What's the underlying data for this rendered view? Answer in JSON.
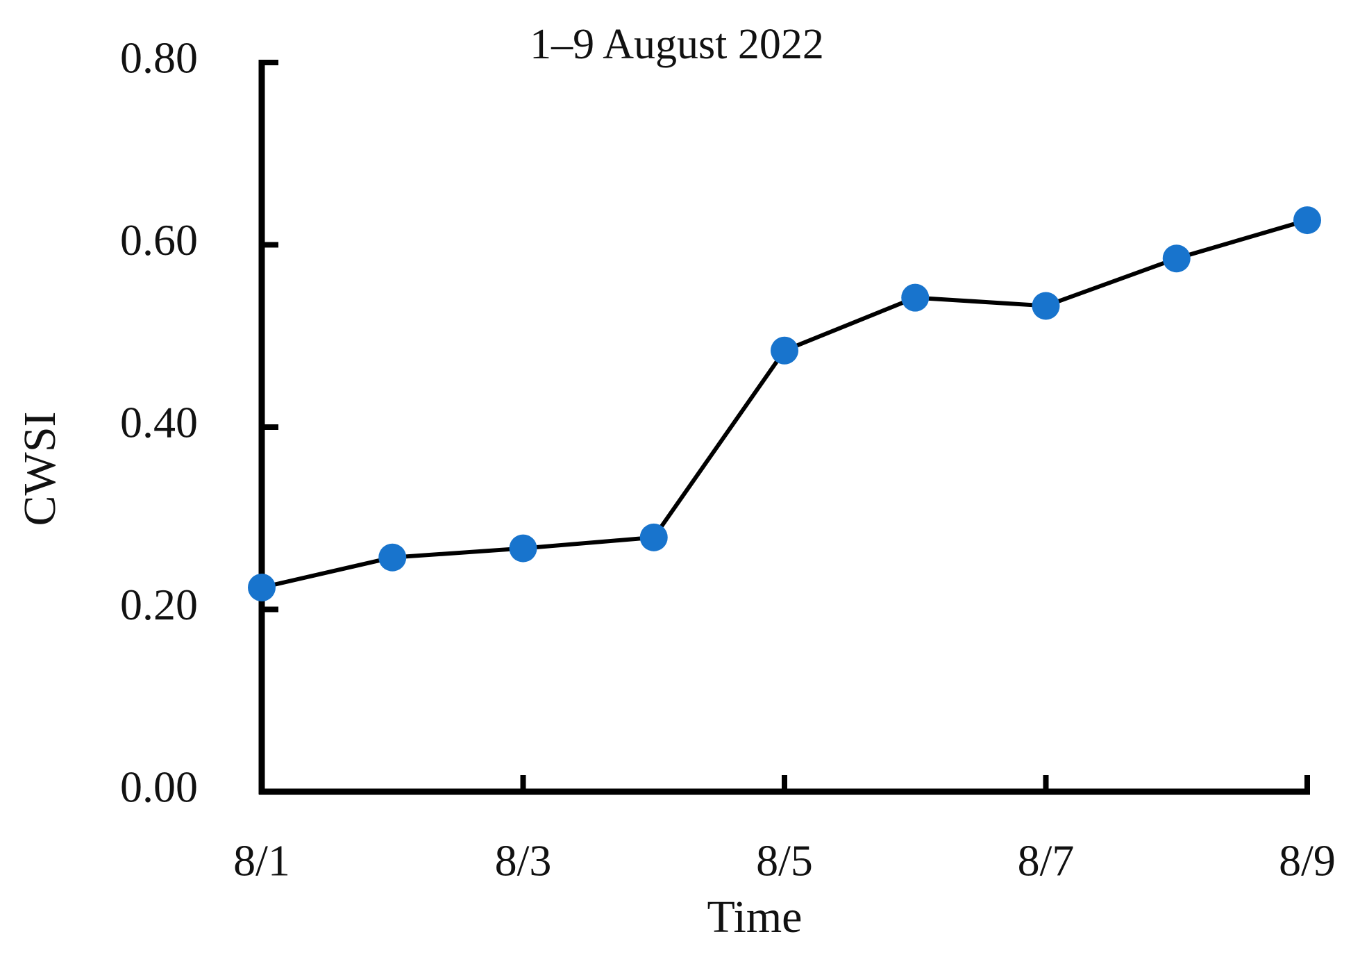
{
  "chart_data": {
    "type": "line",
    "title": "1–9 August 2022",
    "x_label": "Time",
    "y_label": "CWSI",
    "categories": [
      "8/1",
      null,
      "8/3",
      null,
      "8/5",
      null,
      "8/7",
      null,
      "8/9"
    ],
    "series": [
      {
        "color": "#1874cd",
        "line_color": "#000000",
        "values": [
          0.224,
          0.257,
          0.267,
          0.279,
          0.484,
          0.542,
          0.533,
          0.585,
          0.627
        ]
      }
    ],
    "ylim": [
      0,
      0.8
    ],
    "yticks": [
      {
        "value": 0,
        "label": "0.00"
      },
      {
        "value": 0.2,
        "label": "0.20"
      },
      {
        "value": 0.4,
        "label": "0.40"
      },
      {
        "value": 0.6,
        "label": "0.60"
      },
      {
        "value": 0.8,
        "label": "0.80"
      }
    ],
    "grid": false
  }
}
